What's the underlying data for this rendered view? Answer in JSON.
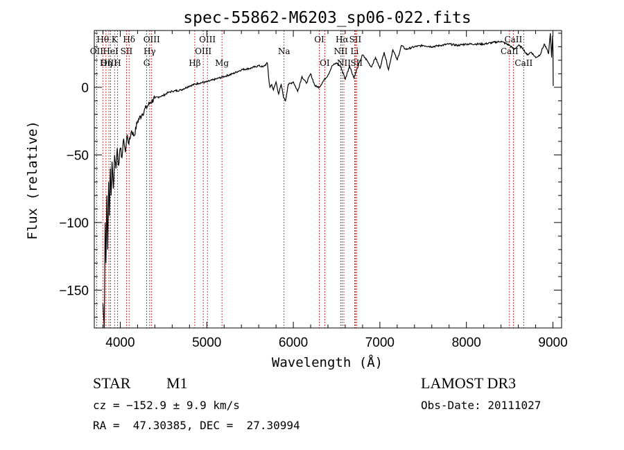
{
  "chart_data": {
    "type": "line",
    "title": "spec-55862-M6203_sp06-022.fits",
    "xlabel": "Wavelength (Å)",
    "ylabel": "Flux (relative)",
    "xlim": [
      3700,
      9100
    ],
    "ylim": [
      -178,
      42
    ],
    "xticks": [
      4000,
      5000,
      6000,
      7000,
      8000,
      9000
    ],
    "xtick_labels": [
      "4000",
      "5000",
      "6000",
      "7000",
      "8000",
      "9000"
    ],
    "yticks": [
      -150,
      -100,
      -50,
      0
    ],
    "ytick_labels": [
      "−150",
      "−100",
      "−50",
      "0"
    ],
    "series": [
      {
        "name": "flux",
        "x": [
          3800,
          3815,
          3825,
          3835,
          3845,
          3855,
          3865,
          3875,
          3885,
          3895,
          3905,
          3920,
          3935,
          3950,
          3965,
          3980,
          4000,
          4020,
          4040,
          4060,
          4080,
          4100,
          4130,
          4160,
          4200,
          4250,
          4300,
          4350,
          4400,
          4450,
          4500,
          4550,
          4600,
          4700,
          4800,
          4900,
          5000,
          5100,
          5200,
          5300,
          5400,
          5500,
          5600,
          5650,
          5700,
          5720,
          5730,
          5750,
          5770,
          5800,
          5830,
          5860,
          5890,
          5910,
          5940,
          6000,
          6050,
          6100,
          6150,
          6200,
          6250,
          6300,
          6350,
          6400,
          6450,
          6500,
          6550,
          6600,
          6650,
          6700,
          6750,
          6800,
          6850,
          6900,
          6950,
          7000,
          7050,
          7100,
          7150,
          7200,
          7250,
          7300,
          7400,
          7500,
          7600,
          7700,
          7800,
          7900,
          8000,
          8100,
          8200,
          8300,
          8400,
          8500,
          8550,
          8600,
          8650,
          8700,
          8750,
          8800,
          8850,
          8900,
          8950,
          8970,
          8985,
          8995,
          9000,
          9003
        ],
        "y": [
          -160,
          -178,
          -100,
          -130,
          -80,
          -120,
          -70,
          -95,
          -60,
          -80,
          -55,
          -75,
          -50,
          -60,
          -45,
          -58,
          -45,
          -52,
          -38,
          -48,
          -35,
          -42,
          -32,
          -36,
          -25,
          -20,
          -15,
          -11,
          -8,
          -7,
          -6,
          -4,
          -3,
          -2,
          1,
          3,
          4,
          6,
          8,
          10,
          13,
          14,
          16,
          15,
          18,
          4,
          0,
          2,
          -2,
          4,
          -5,
          2,
          -8,
          -10,
          2,
          4,
          -3,
          8,
          3,
          10,
          1,
          0,
          5,
          9,
          16,
          18,
          15,
          6,
          16,
          7,
          16,
          24,
          20,
          15,
          22,
          14,
          26,
          13,
          28,
          20,
          31,
          28,
          30,
          31,
          30,
          31,
          32,
          31,
          32,
          32,
          32,
          33,
          34,
          31,
          28,
          31,
          29,
          24,
          26,
          22,
          24,
          32,
          25,
          40,
          22,
          38,
          30,
          1
        ]
      }
    ],
    "annotations": [
      {
        "label": "Hθ",
        "wave": 3798,
        "row": 1
      },
      {
        "label": "OII",
        "wave": 3727,
        "row": 2
      },
      {
        "label": "OIII",
        "wave": 3869,
        "row": 3
      },
      {
        "label": "K",
        "wave": 3934,
        "row": 1
      },
      {
        "label": "HeI",
        "wave": 3889,
        "row": 2
      },
      {
        "label": "Hη",
        "wave": 3835,
        "row": 3
      },
      {
        "label": "Hδ",
        "wave": 4102,
        "row": 1
      },
      {
        "label": "SII",
        "wave": 4072,
        "row": 2
      },
      {
        "label": "H",
        "wave": 3968,
        "row": 3
      },
      {
        "label": "OIII",
        "wave": 4363,
        "row": 1
      },
      {
        "label": "Hγ",
        "wave": 4340,
        "row": 2
      },
      {
        "label": "G",
        "wave": 4305,
        "row": 3
      },
      {
        "label": "OIII",
        "wave": 5007,
        "row": 1
      },
      {
        "label": "OIII",
        "wave": 4959,
        "row": 2
      },
      {
        "label": "Hβ",
        "wave": 4861,
        "row": 3
      },
      {
        "label": "Mg",
        "wave": 5175,
        "row": 3
      },
      {
        "label": "Na",
        "wave": 5893,
        "row": 2
      },
      {
        "label": "OI",
        "wave": 6300,
        "row": 1
      },
      {
        "label": "OI",
        "wave": 6363,
        "row": 3
      },
      {
        "label": "Hα",
        "wave": 6563,
        "row": 1
      },
      {
        "label": "SII",
        "wave": 6716,
        "row": 1
      },
      {
        "label": "NII",
        "wave": 6548,
        "row": 2
      },
      {
        "label": "Li",
        "wave": 6708,
        "row": 2
      },
      {
        "label": "NII",
        "wave": 6584,
        "row": 3
      },
      {
        "label": "SII",
        "wave": 6731,
        "row": 3
      },
      {
        "label": "CaII",
        "wave": 8542,
        "row": 1
      },
      {
        "label": "CaII",
        "wave": 8498,
        "row": 2
      },
      {
        "label": "CaII",
        "wave": 8662,
        "row": 3
      }
    ]
  },
  "footer": {
    "class_label": "STAR",
    "subclass": "M1",
    "cz": "cz = −152.9 ± 9.9 km/s",
    "coords": "RA =  47.30385, DEC =  27.30994",
    "survey": "LAMOST DR3",
    "obs_date": "Obs-Date: 20111027"
  }
}
